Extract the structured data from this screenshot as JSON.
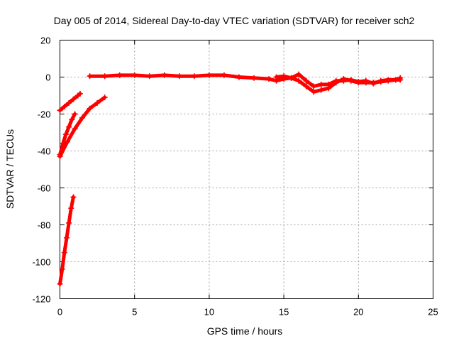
{
  "chart_data": {
    "type": "scatter",
    "title": "Day 005 of 2014, Sidereal Day-to-day VTEC variation (SDTVAR) for receiver sch2",
    "xlabel": "GPS time / hours",
    "ylabel": "SDTVAR / TECUs",
    "xlim": [
      0,
      25
    ],
    "ylim": [
      -120,
      20
    ],
    "xticks": [
      0,
      5,
      10,
      15,
      20,
      25
    ],
    "yticks": [
      20,
      0,
      -20,
      -40,
      -60,
      -80,
      -100,
      -120
    ],
    "grid": true,
    "marker": "plus",
    "color": "#ff0000",
    "series": [
      {
        "points": [
          [
            0,
            -112
          ],
          [
            0.15,
            -104
          ],
          [
            0.3,
            -95
          ],
          [
            0.45,
            -87
          ],
          [
            0.6,
            -79
          ],
          [
            0.75,
            -71
          ],
          [
            0.9,
            -65
          ]
        ]
      },
      {
        "points": [
          [
            0,
            -42
          ],
          [
            0.2,
            -36
          ],
          [
            0.4,
            -31
          ],
          [
            0.6,
            -27
          ],
          [
            0.8,
            -23
          ],
          [
            1.0,
            -20
          ]
        ]
      },
      {
        "points": [
          [
            0,
            -43
          ],
          [
            0.5,
            -35
          ],
          [
            1.0,
            -28
          ],
          [
            1.5,
            -22
          ],
          [
            2.0,
            -17
          ],
          [
            2.5,
            -14
          ],
          [
            3.0,
            -11
          ]
        ]
      },
      {
        "points": [
          [
            0,
            -18
          ],
          [
            0.3,
            -16
          ],
          [
            0.6,
            -14
          ],
          [
            0.9,
            -12
          ],
          [
            1.2,
            -10
          ],
          [
            1.35,
            -9
          ]
        ]
      },
      {
        "points": [
          [
            2.0,
            0.5
          ],
          [
            3,
            0.5
          ],
          [
            4,
            1
          ],
          [
            5,
            1
          ],
          [
            6,
            0.5
          ],
          [
            7,
            1
          ],
          [
            8,
            0.5
          ],
          [
            9,
            0.5
          ],
          [
            10,
            1
          ],
          [
            11,
            1
          ],
          [
            12,
            0
          ],
          [
            13,
            -0.5
          ],
          [
            14,
            -1
          ],
          [
            14.5,
            -2
          ],
          [
            15,
            -1
          ],
          [
            15.5,
            -0.5
          ],
          [
            16,
            -2
          ],
          [
            16.5,
            -5
          ],
          [
            17,
            -8
          ],
          [
            17.5,
            -7
          ],
          [
            18,
            -6
          ],
          [
            18.5,
            -3
          ],
          [
            19,
            -1
          ],
          [
            19.5,
            -2
          ],
          [
            20,
            -3
          ],
          [
            20.5,
            -3
          ],
          [
            21,
            -3
          ],
          [
            21.5,
            -2.5
          ],
          [
            22,
            -2
          ],
          [
            22.5,
            -1.5
          ],
          [
            22.8,
            -1.5
          ]
        ]
      },
      {
        "points": [
          [
            14.5,
            0
          ],
          [
            15,
            0.5
          ],
          [
            15.5,
            -0.5
          ],
          [
            16,
            1.5
          ],
          [
            16.5,
            -2
          ],
          [
            17,
            -5
          ],
          [
            17.5,
            -4
          ],
          [
            18,
            -4
          ],
          [
            18.5,
            -2
          ],
          [
            19,
            -2
          ],
          [
            19.5,
            -1.5
          ],
          [
            20,
            -2.5
          ],
          [
            20.5,
            -2
          ],
          [
            21,
            -3.5
          ],
          [
            21.5,
            -2
          ],
          [
            22,
            -1.5
          ],
          [
            22.5,
            -1.5
          ],
          [
            22.8,
            -0.5
          ]
        ]
      }
    ]
  }
}
